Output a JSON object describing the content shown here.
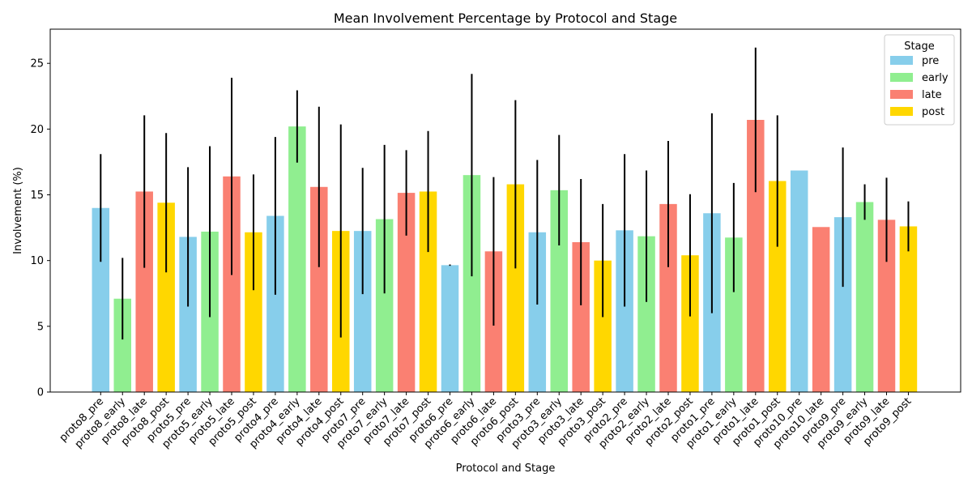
{
  "chart_data": {
    "type": "bar",
    "title": "Mean Involvement Percentage by Protocol and Stage",
    "xlabel": "Protocol and Stage",
    "ylabel": "Involvement (%)",
    "ylim": [
      0,
      27.6
    ],
    "yticks": [
      0,
      5,
      10,
      15,
      20,
      25
    ],
    "grid": false,
    "legend": {
      "title": "Stage",
      "placement": "top-right",
      "entries": [
        "pre",
        "early",
        "late",
        "post"
      ]
    },
    "stage_colors": {
      "pre": "#87CEEB",
      "early": "#90EE90",
      "late": "#FA8072",
      "post": "#FFD700"
    },
    "errorbar_color": "#000000",
    "bars": [
      {
        "stage": "pre",
        "value": 14.0,
        "err": 4.1
      },
      {
        "stage": "early",
        "value": 7.1,
        "err": 3.1
      },
      {
        "stage": "late",
        "value": 15.25,
        "err": 5.8
      },
      {
        "stage": "post",
        "value": 14.4,
        "err": 5.3
      },
      {
        "stage": "pre",
        "value": 11.8,
        "err": 5.3
      },
      {
        "stage": "early",
        "value": 12.2,
        "err": 6.5
      },
      {
        "stage": "late",
        "value": 16.4,
        "err": 7.5
      },
      {
        "stage": "post",
        "value": 12.15,
        "err": 4.4
      },
      {
        "stage": "pre",
        "value": 13.4,
        "err": 6.0
      },
      {
        "stage": "early",
        "value": 20.2,
        "err": 2.75
      },
      {
        "stage": "late",
        "value": 15.6,
        "err": 6.1
      },
      {
        "stage": "post",
        "value": 12.25,
        "err": 8.1
      },
      {
        "stage": "pre",
        "value": 12.25,
        "err": 4.8
      },
      {
        "stage": "early",
        "value": 13.15,
        "err": 5.65
      },
      {
        "stage": "late",
        "value": 15.15,
        "err": 3.25
      },
      {
        "stage": "post",
        "value": 15.25,
        "err": 4.6
      },
      {
        "stage": "pre",
        "value": 9.65,
        "err": 0.05
      },
      {
        "stage": "early",
        "value": 16.5,
        "err": 7.7
      },
      {
        "stage": "late",
        "value": 10.7,
        "err": 5.65
      },
      {
        "stage": "post",
        "value": 15.8,
        "err": 6.4
      },
      {
        "stage": "pre",
        "value": 12.15,
        "err": 5.5
      },
      {
        "stage": "early",
        "value": 15.35,
        "err": 4.2
      },
      {
        "stage": "late",
        "value": 11.4,
        "err": 4.8
      },
      {
        "stage": "post",
        "value": 10.0,
        "err": 4.3
      },
      {
        "stage": "pre",
        "value": 12.3,
        "err": 5.8
      },
      {
        "stage": "early",
        "value": 11.85,
        "err": 5.0
      },
      {
        "stage": "late",
        "value": 14.3,
        "err": 4.8
      },
      {
        "stage": "post",
        "value": 10.4,
        "err": 4.65
      },
      {
        "stage": "pre",
        "value": 13.6,
        "err": 7.6
      },
      {
        "stage": "early",
        "value": 11.75,
        "err": 4.15
      },
      {
        "stage": "late",
        "value": 20.7,
        "err": 5.5
      },
      {
        "stage": "post",
        "value": 16.05,
        "err": 5.0
      },
      {
        "stage": "pre",
        "value": 16.85,
        "err": 0
      },
      {
        "stage": "late",
        "value": 12.55,
        "err": 0
      },
      {
        "stage": "pre",
        "value": 13.3,
        "err": 5.3
      },
      {
        "stage": "early",
        "value": 14.45,
        "err": 1.35
      },
      {
        "stage": "late",
        "value": 13.1,
        "err": 3.2
      },
      {
        "stage": "post",
        "value": 12.6,
        "err": 1.9
      }
    ],
    "categories": [
      "proto8_pre",
      "proto8_early",
      "proto8_late",
      "proto8_post",
      "proto5_pre",
      "proto5_early",
      "proto5_late",
      "proto5_post",
      "proto4_pre",
      "proto4_early",
      "proto4_late",
      "proto4_post",
      "proto7_pre",
      "proto7_early",
      "proto7_late",
      "proto7_post",
      "proto6_pre",
      "proto6_early",
      "proto6_late",
      "proto6_post",
      "proto3_pre",
      "proto3_early",
      "proto3_late",
      "proto3_post",
      "proto2_pre",
      "proto2_early",
      "proto2_late",
      "proto2_post",
      "proto1_pre",
      "proto1_early",
      "proto1_late",
      "proto1_post",
      "proto10_pre",
      "proto10_late",
      "proto9_pre",
      "proto9_early",
      "proto9_late",
      "proto9_post"
    ]
  }
}
